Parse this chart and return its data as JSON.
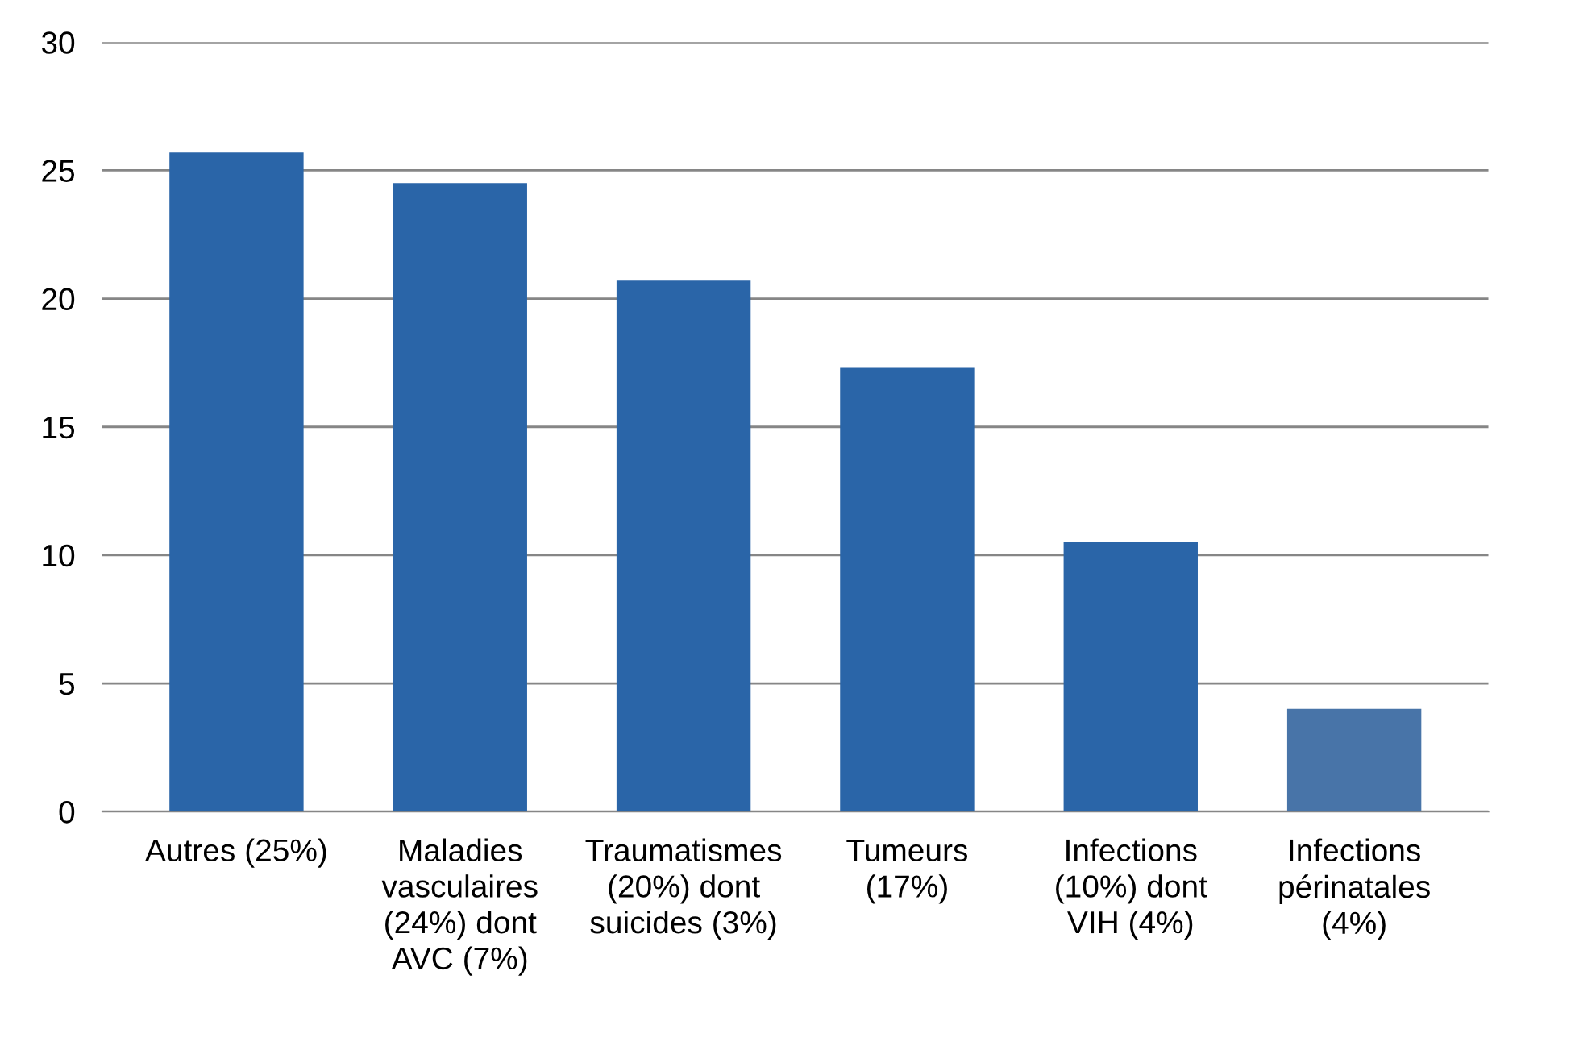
{
  "chart_data": {
    "type": "bar",
    "categories": [
      "Autres (25%)",
      "Maladies\nvasculaires\n(24%) dont\nAVC (7%)",
      "Traumatismes\n(20%) dont\nsuicides (3%)",
      "Tumeurs\n(17%)",
      "Infections\n(10%) dont\nVIH (4%)",
      "Infections\npérinatales\n(4%)"
    ],
    "values": [
      25.7,
      24.5,
      20.7,
      17.3,
      10.5,
      4.0
    ],
    "colors": [
      "#2a65a8",
      "#2a65a8",
      "#2a65a8",
      "#2a65a8",
      "#2a65a8",
      "#4874a8"
    ],
    "ylim": [
      0,
      30
    ],
    "yticks": [
      0,
      5,
      10,
      15,
      20,
      25,
      30
    ],
    "grid": "y",
    "legend": false
  }
}
